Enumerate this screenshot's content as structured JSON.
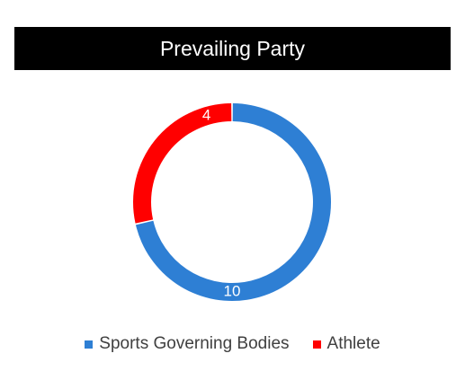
{
  "chart_data": {
    "type": "pie",
    "title": "Prevailing Party",
    "categories": [
      "Sports Governing Bodies",
      "Athlete"
    ],
    "values": [
      10,
      4
    ],
    "colors": [
      "#2E7FD4",
      "#FF0000"
    ],
    "data_labels": [
      "10",
      "4"
    ],
    "legend_position": "bottom",
    "style": "donut"
  }
}
